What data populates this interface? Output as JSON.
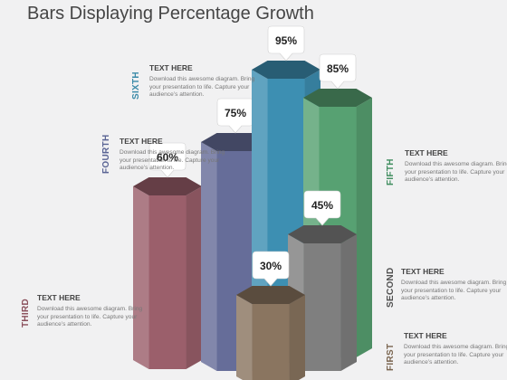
{
  "title": "Bars Displaying Percentage Growth",
  "bars": [
    {
      "label": "FIRST",
      "value": 30,
      "text": "30%",
      "color": "#8a7560"
    },
    {
      "label": "SECOND",
      "value": 45,
      "text": "45%",
      "color": "#7f7f7f"
    },
    {
      "label": "THIRD",
      "value": 60,
      "text": "60%",
      "color": "#9b5f6b"
    },
    {
      "label": "FOURTH",
      "value": 75,
      "text": "75%",
      "color": "#666d99"
    },
    {
      "label": "FIFTH",
      "value": 85,
      "text": "85%",
      "color": "#57a172"
    },
    {
      "label": "SIXTH",
      "value": 95,
      "text": "95%",
      "color": "#3d8fb2"
    }
  ],
  "labels": {
    "sixth": {
      "heading": "TEXT HERE",
      "body": "Download this awesome diagram. Bring your presentation to life. Capture your audience’s attention.",
      "tag": "SIXTH",
      "color": "#3a8aa8"
    },
    "fourth": {
      "heading": "TEXT HERE",
      "body": "Download this awesome diagram. Bring your presentation to life. Capture your audience’s attention.",
      "tag": "FOURTH",
      "color": "#5a6494"
    },
    "fifth": {
      "heading": "TEXT HERE",
      "body": "Download  this awesome diagram.  Bring your presentation to life. Capture your audience’s attention.",
      "tag": "FIFTH",
      "color": "#3f8d5e"
    },
    "second": {
      "heading": "TEXT HERE",
      "body": "Download this awesome diagram. Bring your presentation to life. Capture your audience’s attention.",
      "tag": "SECOND",
      "color": "#505050"
    },
    "third": {
      "heading": "TEXT HERE",
      "body": "Download this awesome diagram. Bring your presentation to life. Capture your audience’s attention.",
      "tag": "THIRD",
      "color": "#8a4f5b"
    },
    "first": {
      "heading": "TEXT HERE",
      "body": "Download this awesome diagram. Bring your presentation to life. Capture your audience’s attention.",
      "tag": "FIRST",
      "color": "#7a6550"
    }
  }
}
